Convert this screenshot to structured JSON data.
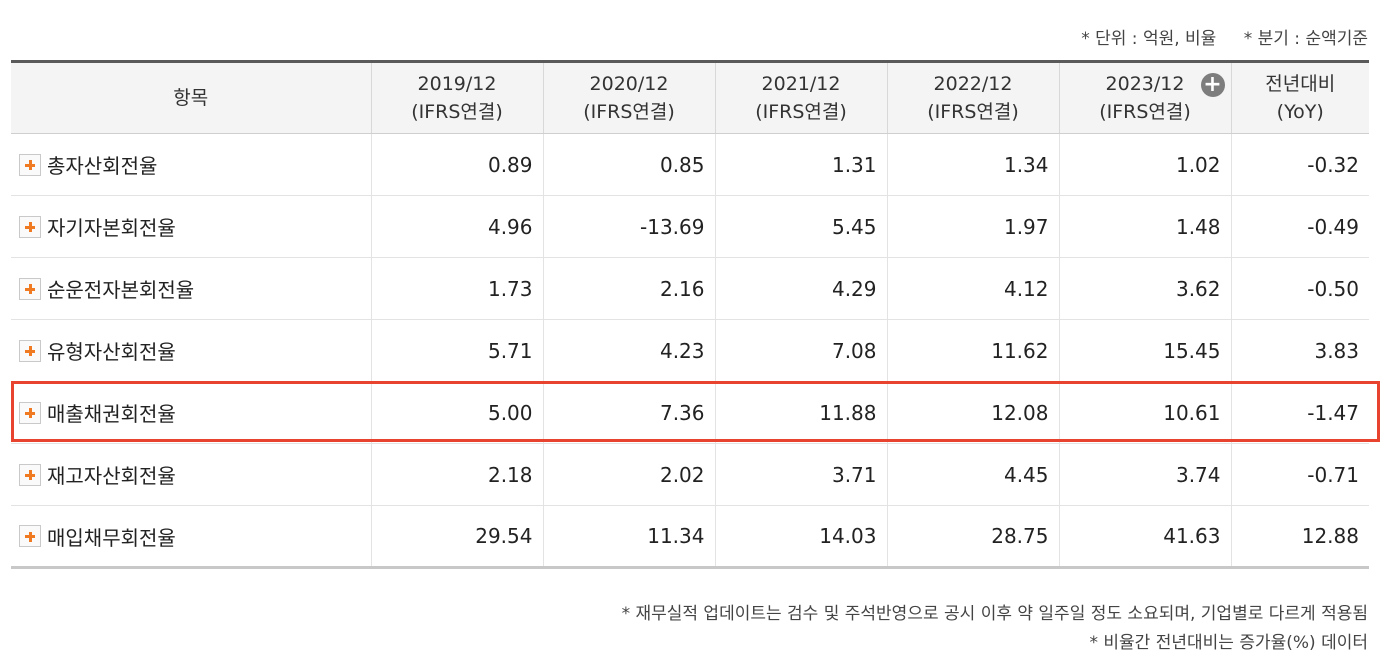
{
  "unit_note": {
    "unit": "* 단위 : 억원, 비율",
    "quarter": "* 분기 : 순액기준"
  },
  "table": {
    "headers": [
      {
        "line1": "항목",
        "line2": ""
      },
      {
        "line1": "2019/12",
        "line2": "(IFRS연결)"
      },
      {
        "line1": "2020/12",
        "line2": "(IFRS연결)"
      },
      {
        "line1": "2021/12",
        "line2": "(IFRS연결)"
      },
      {
        "line1": "2022/12",
        "line2": "(IFRS연결)"
      },
      {
        "line1": "2023/12",
        "line2": "(IFRS연결)"
      },
      {
        "line1": "전년대비",
        "line2": "(YoY)"
      }
    ],
    "expand_columns_icon": "plus-circle-icon",
    "rows": [
      {
        "label": "총자산회전율",
        "values": [
          "0.89",
          "0.85",
          "1.31",
          "1.34",
          "1.02",
          "-0.32"
        ]
      },
      {
        "label": "자기자본회전율",
        "values": [
          "4.96",
          "-13.69",
          "5.45",
          "1.97",
          "1.48",
          "-0.49"
        ]
      },
      {
        "label": "순운전자본회전율",
        "values": [
          "1.73",
          "2.16",
          "4.29",
          "4.12",
          "3.62",
          "-0.50"
        ]
      },
      {
        "label": "유형자산회전율",
        "values": [
          "5.71",
          "4.23",
          "7.08",
          "11.62",
          "15.45",
          "3.83"
        ]
      },
      {
        "label": "매출채권회전율",
        "values": [
          "5.00",
          "7.36",
          "11.88",
          "12.08",
          "10.61",
          "-1.47"
        ]
      },
      {
        "label": "재고자산회전율",
        "values": [
          "2.18",
          "2.02",
          "3.71",
          "4.45",
          "3.74",
          "-0.71"
        ]
      },
      {
        "label": "매입채무회전율",
        "values": [
          "29.54",
          "11.34",
          "14.03",
          "28.75",
          "41.63",
          "12.88"
        ]
      }
    ],
    "highlighted_row": "매출채권회전율"
  },
  "footnotes": [
    "* 재무실적 업데이트는 검수 및 주석반영으로 공시 이후 약 일주일 정도 소요되며, 기업별로 다르게 적용됨",
    "* 비율간 전년대비는 증가율(%) 데이터"
  ],
  "colors": {
    "negative": "#cc1f1f",
    "highlight_border": "#e8432e",
    "expand_icon": "#f07a22"
  }
}
